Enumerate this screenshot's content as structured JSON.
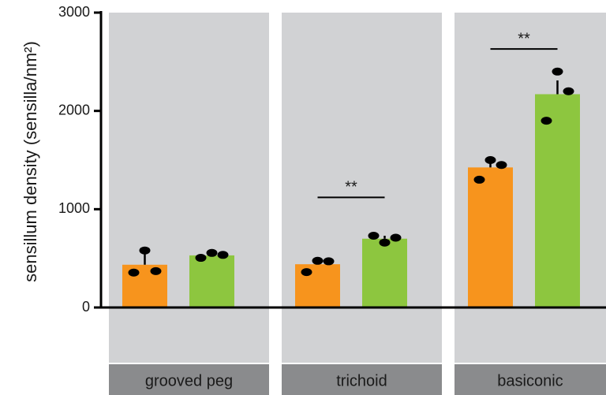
{
  "chart_data": {
    "type": "bar",
    "ylabel": "sensillum density (sensilla/nm²)",
    "categories": [
      "grooved peg",
      "trichoid",
      "basiconic"
    ],
    "series": [
      {
        "color": "#f7941d",
        "values": [
          435,
          440,
          1425
        ],
        "errors": [
          150,
          50,
          75
        ],
        "points": [
          [
            355,
            580,
            370
          ],
          [
            360,
            475,
            470
          ],
          [
            1300,
            1500,
            1450
          ]
        ]
      },
      {
        "color": "#8dc63f",
        "values": [
          530,
          700,
          2170
        ],
        "errors": [
          30,
          30,
          140
        ],
        "points": [
          [
            505,
            555,
            535
          ],
          [
            730,
            660,
            710
          ],
          [
            1900,
            2400,
            2200
          ]
        ]
      }
    ],
    "annotations": [
      {
        "text": "**",
        "category": "trichoid",
        "y": 1120
      },
      {
        "text": "**",
        "category": "basiconic",
        "y": 2630
      }
    ],
    "ylim": [
      0,
      3000
    ],
    "yticks": [
      0,
      1000,
      2000,
      3000
    ],
    "panel_color": "#d1d2d4",
    "label_color": "#8a8b8d"
  }
}
